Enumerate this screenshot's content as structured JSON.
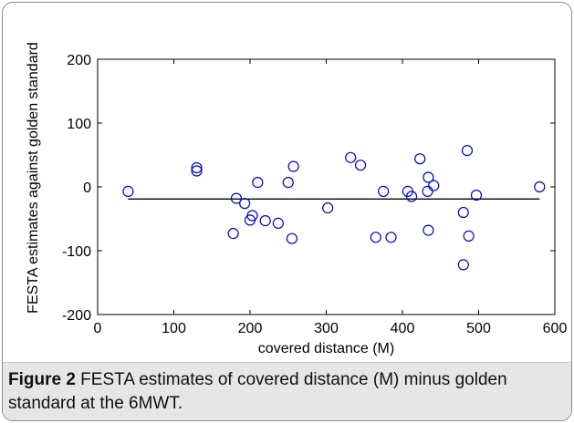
{
  "chart_data": {
    "type": "scatter",
    "xlabel": "covered distance (M)",
    "ylabel": "FESTA estimates against golden standard",
    "xlim": [
      0,
      600
    ],
    "ylim": [
      -200,
      200
    ],
    "xticks": [
      "0",
      "100",
      "200",
      "300",
      "400",
      "500",
      "600"
    ],
    "yticks": [
      "200",
      "100",
      "0",
      "-100",
      "-200"
    ],
    "xtick_values": [
      0,
      100,
      200,
      300,
      400,
      500,
      600
    ],
    "ytick_values": [
      200,
      100,
      0,
      -100,
      -200
    ],
    "marker_color": "#0000cc",
    "line_color": "#000000",
    "mean_line": {
      "y": -19,
      "x_start": 40,
      "x_end": 580
    },
    "points": [
      {
        "x": 40,
        "y": -7
      },
      {
        "x": 130,
        "y": 30
      },
      {
        "x": 130,
        "y": 25
      },
      {
        "x": 178,
        "y": -73
      },
      {
        "x": 182,
        "y": -18
      },
      {
        "x": 193,
        "y": -26
      },
      {
        "x": 200,
        "y": -52
      },
      {
        "x": 203,
        "y": -45
      },
      {
        "x": 210,
        "y": 7
      },
      {
        "x": 220,
        "y": -53
      },
      {
        "x": 237,
        "y": -57
      },
      {
        "x": 250,
        "y": 7
      },
      {
        "x": 255,
        "y": -81
      },
      {
        "x": 257,
        "y": 32
      },
      {
        "x": 302,
        "y": -33
      },
      {
        "x": 332,
        "y": 46
      },
      {
        "x": 345,
        "y": 34
      },
      {
        "x": 365,
        "y": -79
      },
      {
        "x": 375,
        "y": -7
      },
      {
        "x": 385,
        "y": -79
      },
      {
        "x": 407,
        "y": -7
      },
      {
        "x": 412,
        "y": -15
      },
      {
        "x": 423,
        "y": 44
      },
      {
        "x": 433,
        "y": -7
      },
      {
        "x": 434,
        "y": 15
      },
      {
        "x": 434,
        "y": -68
      },
      {
        "x": 441,
        "y": 2
      },
      {
        "x": 480,
        "y": -40
      },
      {
        "x": 480,
        "y": -122
      },
      {
        "x": 485,
        "y": 57
      },
      {
        "x": 487,
        "y": -77
      },
      {
        "x": 497,
        "y": -13
      },
      {
        "x": 580,
        "y": 0
      }
    ]
  },
  "caption": {
    "label": "Figure 2",
    "text": " FESTA estimates of covered distance (M) minus golden standard at the 6MWT."
  }
}
